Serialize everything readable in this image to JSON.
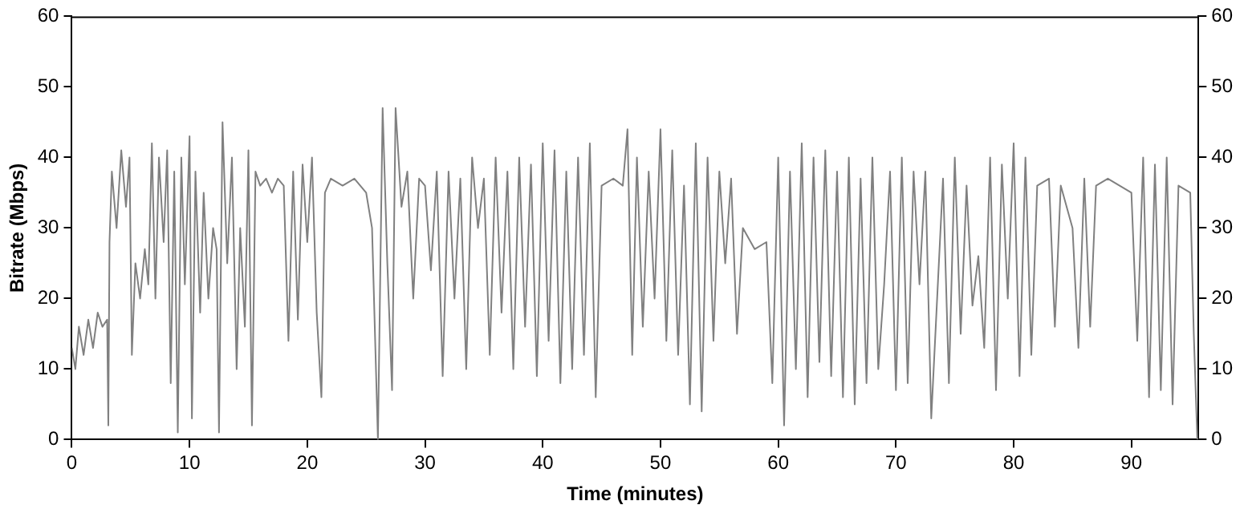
{
  "chart_data": {
    "type": "line",
    "xlabel": "Time (minutes)",
    "ylabel": "Bitrate (Mbps)",
    "xlim": [
      0,
      95.7
    ],
    "xticks": [
      0,
      10,
      20,
      30,
      40,
      50,
      60,
      70,
      80,
      90
    ],
    "ylim": [
      0,
      60
    ],
    "yticks": [
      0,
      10,
      20,
      30,
      40,
      50,
      60
    ],
    "y2lim": [
      0,
      60
    ],
    "y2ticks": [
      0,
      10,
      20,
      30,
      40,
      50,
      60
    ],
    "grid": false,
    "legend": false,
    "marker": "none",
    "line_style": "solid",
    "x": [
      0,
      0.3,
      0.6,
      1,
      1.4,
      1.8,
      2.2,
      2.6,
      3,
      3.1,
      3.2,
      3.4,
      3.8,
      4.2,
      4.6,
      4.9,
      5.1,
      5.4,
      5.8,
      6.2,
      6.5,
      6.8,
      7.1,
      7.4,
      7.8,
      8.1,
      8.4,
      8.7,
      9,
      9.3,
      9.6,
      10,
      10.2,
      10.5,
      10.9,
      11.2,
      11.6,
      12,
      12.3,
      12.5,
      12.8,
      13.2,
      13.6,
      14,
      14.3,
      14.7,
      15,
      15.3,
      15.6,
      16,
      16.5,
      17,
      17.5,
      18,
      18.4,
      18.8,
      19.2,
      19.6,
      20,
      20.4,
      20.8,
      21.2,
      21.5,
      22,
      23,
      24,
      25,
      25.5,
      25.8,
      26,
      26.4,
      26.8,
      27.2,
      27.5,
      28,
      28.5,
      29,
      29.5,
      30,
      30.5,
      31,
      31.5,
      32,
      32.5,
      33,
      33.5,
      34,
      34.5,
      35,
      35.5,
      36,
      36.5,
      37,
      37.5,
      38,
      38.5,
      39,
      39.5,
      40,
      40.5,
      41,
      41.5,
      42,
      42.5,
      43,
      43.5,
      44,
      44.5,
      45,
      46,
      46.8,
      47.2,
      47.6,
      48,
      48.5,
      49,
      49.5,
      50,
      50.5,
      51,
      51.5,
      52,
      52.5,
      53,
      53.5,
      54,
      54.5,
      55,
      55.5,
      56,
      56.5,
      57,
      58,
      59,
      59.5,
      60,
      60.5,
      61,
      61.5,
      62,
      62.5,
      63,
      63.5,
      64,
      64.5,
      65,
      65.5,
      66,
      66.5,
      67,
      67.5,
      68,
      68.5,
      69,
      69.5,
      70,
      70.5,
      71,
      71.5,
      72,
      72.5,
      73,
      74,
      74.5,
      75,
      75.5,
      76,
      76.5,
      77,
      77.5,
      78,
      78.5,
      79,
      79.5,
      80,
      80.5,
      81,
      81.5,
      82,
      83,
      83.5,
      84,
      85,
      85.5,
      86,
      86.5,
      87,
      88,
      89,
      90,
      90.5,
      91,
      91.5,
      92,
      92.5,
      93,
      93.5,
      94,
      95,
      95.3,
      95.6
    ],
    "series": [
      {
        "color": "#808080",
        "values": [
          13,
          10,
          16,
          12,
          17,
          13,
          18,
          16,
          17,
          2,
          28,
          38,
          30,
          41,
          33,
          40,
          12,
          25,
          20,
          27,
          22,
          42,
          20,
          40,
          28,
          41,
          8,
          38,
          1,
          40,
          22,
          43,
          3,
          38,
          18,
          35,
          20,
          30,
          27,
          1,
          45,
          25,
          40,
          10,
          30,
          16,
          41,
          2,
          38,
          36,
          37,
          35,
          37,
          36,
          14,
          38,
          17,
          39,
          28,
          40,
          18,
          6,
          35,
          37,
          36,
          37,
          35,
          30,
          12,
          0,
          47,
          25,
          7,
          47,
          33,
          38,
          20,
          37,
          36,
          24,
          38,
          9,
          38,
          20,
          37,
          10,
          40,
          30,
          37,
          12,
          40,
          18,
          38,
          10,
          40,
          16,
          39,
          9,
          42,
          14,
          41,
          8,
          38,
          10,
          40,
          12,
          42,
          6,
          36,
          37,
          36,
          44,
          12,
          40,
          16,
          38,
          20,
          44,
          14,
          41,
          12,
          36,
          5,
          42,
          4,
          40,
          14,
          38,
          25,
          37,
          15,
          30,
          27,
          28,
          8,
          40,
          2,
          38,
          10,
          42,
          6,
          40,
          11,
          41,
          9,
          38,
          6,
          40,
          5,
          37,
          8,
          40,
          10,
          22,
          38,
          7,
          40,
          8,
          38,
          22,
          38,
          3,
          37,
          8,
          40,
          15,
          36,
          19,
          26,
          13,
          40,
          7,
          39,
          20,
          42,
          9,
          40,
          12,
          36,
          37,
          16,
          36,
          30,
          13,
          37,
          16,
          36,
          37,
          36,
          35,
          14,
          40,
          6,
          39,
          7,
          40,
          5,
          36,
          35,
          15,
          0
        ]
      }
    ]
  }
}
